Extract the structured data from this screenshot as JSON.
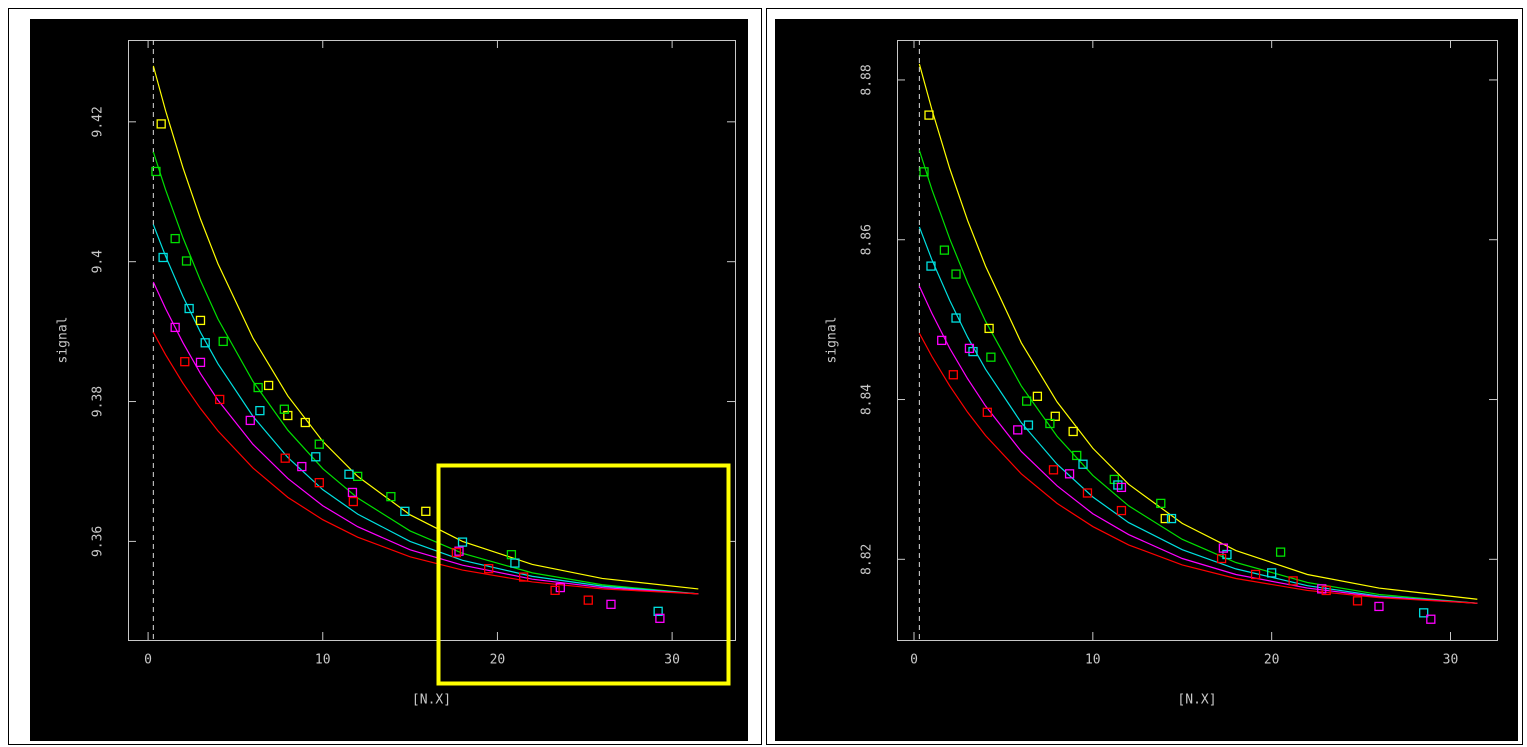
{
  "chart_data": [
    {
      "type": "scatter",
      "xlabel": "[N.X]",
      "ylabel": "signal",
      "xlim": [
        -1.15,
        33.6
      ],
      "ylim": [
        9.3459,
        9.4317
      ],
      "xticks": [
        0,
        10,
        20,
        30
      ],
      "yticks": [
        9.36,
        9.38,
        9.4,
        9.42
      ],
      "reference_x": 0.3,
      "curve_x": [
        0.3,
        1,
        2,
        3,
        4,
        6,
        8,
        10,
        12,
        15,
        18,
        22,
        26,
        31.5
      ],
      "curves": [
        {
          "color": "#ffff00",
          "values": [
            9.428,
            9.4216,
            9.4134,
            9.4061,
            9.3997,
            9.3891,
            9.3808,
            9.3743,
            9.3693,
            9.3638,
            9.36,
            9.3567,
            9.3547,
            9.3532
          ]
        },
        {
          "color": "#00e000",
          "values": [
            9.4157,
            9.4103,
            9.4034,
            9.3973,
            9.3918,
            9.3829,
            9.3759,
            9.3704,
            9.3662,
            9.3615,
            9.3583,
            9.3555,
            9.3538,
            9.3525
          ]
        },
        {
          "color": "#00e0e0",
          "values": [
            9.4053,
            9.4008,
            9.395,
            9.3899,
            9.3854,
            9.3779,
            9.372,
            9.3674,
            9.3639,
            9.36,
            9.3573,
            9.355,
            9.3536,
            9.3525
          ]
        },
        {
          "color": "#ff00ff",
          "values": [
            9.3971,
            9.3933,
            9.3884,
            9.384,
            9.3802,
            9.3739,
            9.369,
            9.3651,
            9.3621,
            9.3588,
            9.3566,
            9.3546,
            9.3534,
            9.3525
          ]
        },
        {
          "color": "#ff0000",
          "values": [
            9.3899,
            9.3867,
            9.3826,
            9.379,
            9.3758,
            9.3705,
            9.3663,
            9.3631,
            9.3606,
            9.3578,
            9.3559,
            9.3542,
            9.3532,
            9.3525
          ]
        }
      ],
      "points": [
        {
          "color": "#ffff00",
          "x": [
            0.75,
            3.0,
            6.9,
            8.0,
            9.0,
            15.9
          ],
          "values": [
            9.4197,
            9.3916,
            9.3823,
            9.378,
            9.377,
            9.3643
          ]
        },
        {
          "color": "#00e000",
          "x": [
            0.45,
            1.55,
            2.2,
            4.3,
            6.3,
            7.8,
            9.8,
            12.0,
            13.9,
            20.8
          ],
          "values": [
            9.4129,
            9.4033,
            9.4001,
            9.3886,
            9.382,
            9.3789,
            9.3739,
            9.3693,
            9.3664,
            9.3581
          ]
        },
        {
          "color": "#00e0e0",
          "x": [
            0.86,
            2.35,
            3.27,
            6.4,
            9.6,
            11.5,
            14.7,
            18.0,
            21.0,
            29.2
          ],
          "values": [
            9.4006,
            9.3933,
            9.3884,
            9.3787,
            9.3721,
            9.3696,
            9.3643,
            9.3599,
            9.3569,
            9.35
          ]
        },
        {
          "color": "#ff00ff",
          "x": [
            1.55,
            3.0,
            5.85,
            8.8,
            11.7,
            17.8,
            23.6,
            26.5,
            29.3
          ],
          "values": [
            9.3906,
            9.3856,
            9.3773,
            9.3707,
            9.367,
            9.3586,
            9.3534,
            9.351,
            9.349
          ]
        },
        {
          "color": "#ff0000",
          "x": [
            2.1,
            4.1,
            7.85,
            9.8,
            11.75,
            17.65,
            19.5,
            21.5,
            23.3,
            25.2
          ],
          "values": [
            9.3857,
            9.3803,
            9.3719,
            9.3684,
            9.3657,
            9.3584,
            9.3561,
            9.3549,
            9.353,
            9.3516
          ]
        }
      ]
    },
    {
      "type": "scatter",
      "xlabel": "[N.X]",
      "ylabel": "signal",
      "xlim": [
        -0.95,
        32.6
      ],
      "ylim": [
        8.8099,
        8.885
      ],
      "xticks": [
        0,
        10,
        20,
        30
      ],
      "yticks": [
        8.82,
        8.84,
        8.86,
        8.88
      ],
      "reference_x": 0.3,
      "curve_x": [
        0.3,
        1,
        2,
        3,
        4,
        6,
        8,
        10,
        12,
        15,
        18,
        22,
        26,
        31.5
      ],
      "curves": [
        {
          "color": "#ffff00",
          "values": [
            8.882,
            8.8763,
            8.8689,
            8.8624,
            8.8567,
            8.8471,
            8.8397,
            8.8339,
            8.8294,
            8.8245,
            8.8211,
            8.8181,
            8.8164,
            8.815
          ]
        },
        {
          "color": "#00e000",
          "values": [
            8.8712,
            8.8663,
            8.8601,
            8.8546,
            8.8498,
            8.8417,
            8.8354,
            8.8305,
            8.8267,
            8.8225,
            8.8196,
            8.8171,
            8.8156,
            8.8145
          ]
        },
        {
          "color": "#00e0e0",
          "values": [
            8.8616,
            8.8575,
            8.8524,
            8.8478,
            8.8438,
            8.8371,
            8.8319,
            8.8278,
            8.8246,
            8.8212,
            8.8188,
            8.8167,
            8.8154,
            8.8145
          ]
        },
        {
          "color": "#ff00ff",
          "values": [
            8.8542,
            8.8508,
            8.8464,
            8.8426,
            8.8392,
            8.8335,
            8.8292,
            8.8257,
            8.8231,
            8.8201,
            8.8181,
            8.8164,
            8.8153,
            8.8145
          ]
        },
        {
          "color": "#ff0000",
          "values": [
            8.8483,
            8.8454,
            8.8417,
            8.8384,
            8.8355,
            8.8307,
            8.827,
            8.8241,
            8.8218,
            8.8193,
            8.8176,
            8.8161,
            8.8152,
            8.8145
          ]
        }
      ],
      "points": [
        {
          "color": "#ffff00",
          "x": [
            0.84,
            4.2,
            6.9,
            7.9,
            8.9,
            14.05
          ],
          "values": [
            8.8756,
            8.8489,
            8.8404,
            8.8379,
            8.836,
            8.8251
          ]
        },
        {
          "color": "#00e000",
          "x": [
            0.56,
            1.7,
            2.35,
            4.3,
            6.3,
            7.6,
            9.1,
            11.2,
            13.8,
            20.5
          ],
          "values": [
            8.8685,
            8.8587,
            8.8557,
            8.8453,
            8.8398,
            8.837,
            8.833,
            8.83,
            8.827,
            8.8209
          ]
        },
        {
          "color": "#00e0e0",
          "x": [
            0.95,
            2.35,
            3.3,
            6.4,
            9.45,
            11.4,
            14.4,
            17.5,
            20.0,
            28.5
          ],
          "values": [
            8.8567,
            8.8502,
            8.846,
            8.8368,
            8.8319,
            8.8293,
            8.8251,
            8.8206,
            8.8183,
            8.8133
          ]
        },
        {
          "color": "#ff00ff",
          "x": [
            1.55,
            3.1,
            5.8,
            8.7,
            11.6,
            17.3,
            22.8,
            26.0,
            28.9
          ],
          "values": [
            8.8474,
            8.8464,
            8.8362,
            8.8307,
            8.829,
            8.8214,
            8.8163,
            8.8141,
            8.8125
          ]
        },
        {
          "color": "#ff0000",
          "x": [
            2.2,
            4.1,
            7.8,
            9.7,
            11.6,
            17.2,
            19.1,
            21.2,
            23.05,
            24.8
          ],
          "values": [
            8.8431,
            8.8384,
            8.8312,
            8.8283,
            8.8261,
            8.8201,
            8.8181,
            8.8173,
            8.8161,
            8.8148
          ]
        }
      ]
    }
  ]
}
